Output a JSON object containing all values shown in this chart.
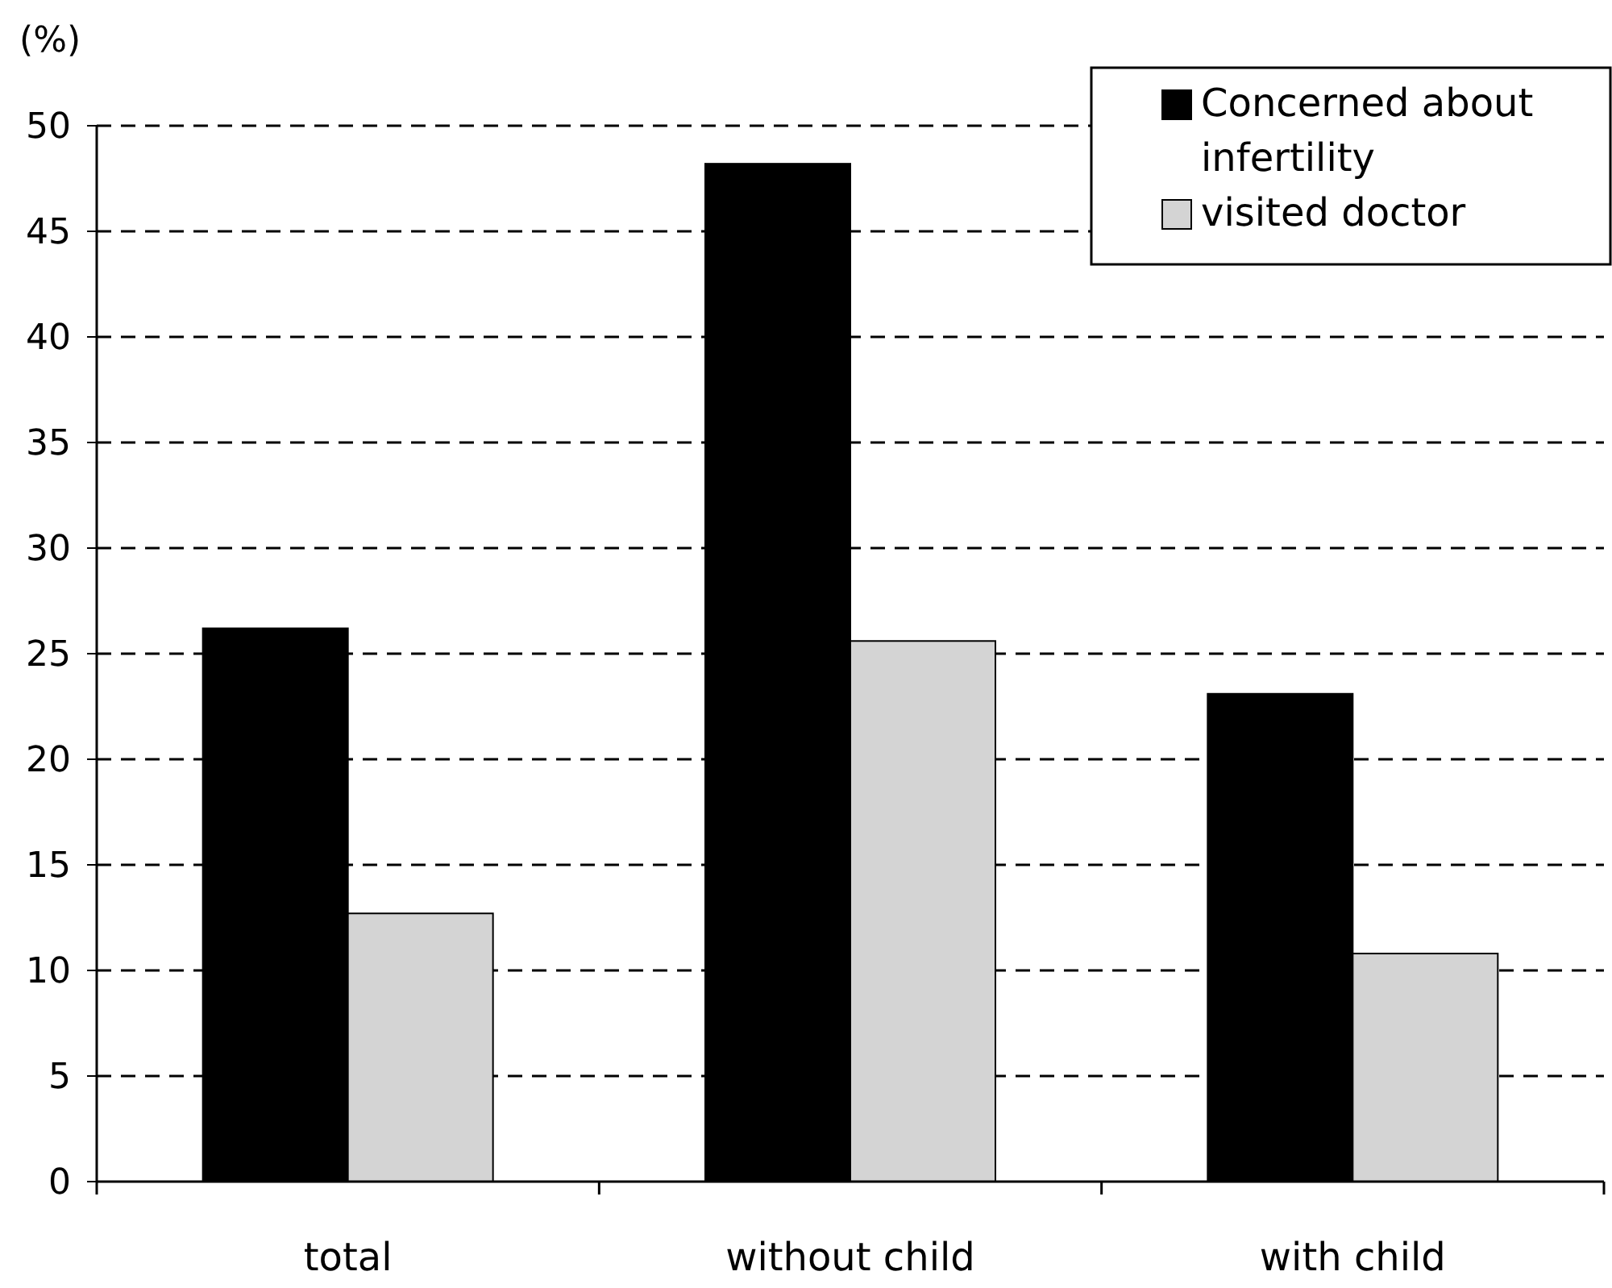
{
  "chart_data": {
    "type": "bar",
    "ylabel": "(%)",
    "categories": [
      "total",
      "without child",
      "with child"
    ],
    "series": [
      {
        "name": "Concerned about infertility",
        "color": "#000000",
        "values": [
          26.2,
          48.2,
          23.1
        ]
      },
      {
        "name": "visited doctor",
        "color": "#d4d4d4",
        "values": [
          12.7,
          25.6,
          10.8
        ]
      }
    ],
    "ylim": [
      0,
      50
    ],
    "yticks": [
      0,
      5,
      10,
      15,
      20,
      25,
      30,
      35,
      40,
      45,
      50
    ],
    "grid": "y",
    "legend": "top right"
  }
}
